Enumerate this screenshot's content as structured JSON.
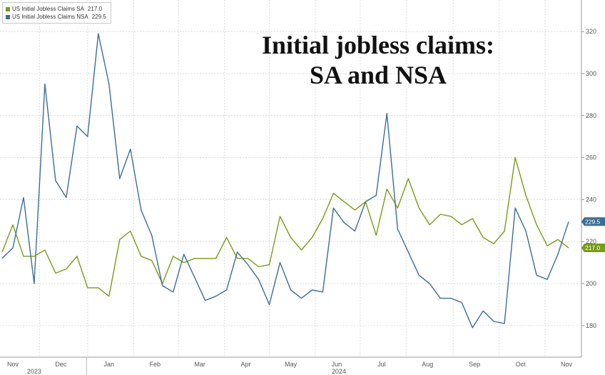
{
  "chart_data": {
    "type": "line",
    "title": "Initial jobless claims: SA and NSA",
    "title_lines": [
      "Initial jobless claims:",
      "SA and NSA"
    ],
    "xlabel": "",
    "ylabel": "",
    "ylim": [
      165,
      335
    ],
    "y_ticks": [
      180,
      200,
      220,
      240,
      260,
      280,
      300,
      320
    ],
    "y_tick_labels": [
      "180",
      "200",
      "220",
      "240",
      "260",
      "280",
      "300",
      "320"
    ],
    "x_month_labels": [
      "Nov",
      "Dec",
      "Jan",
      "Feb",
      "Mar",
      "Apr",
      "May",
      "Jun",
      "Jul",
      "Aug",
      "Sep",
      "Oct",
      "Nov"
    ],
    "x_year_labels": [
      "2023",
      "2024"
    ],
    "x_month_positions": [
      1,
      5.5,
      10,
      14.3,
      18.5,
      22.8,
      27,
      31.3,
      35.5,
      39.8,
      44.2,
      48.5,
      52.8
    ],
    "x_year_positions": [
      3,
      31.5
    ],
    "grid": true,
    "legend_position": "top-left",
    "series": [
      {
        "name": "US Initial Jobless Claims SA",
        "legend_value": "217.0",
        "last_label": "217.0",
        "color": "#7a9a1a",
        "values": [
          215,
          228,
          213,
          213,
          216,
          205,
          207,
          213,
          198,
          198,
          194,
          221,
          225,
          213,
          211,
          200,
          213,
          210,
          212,
          212,
          212,
          222,
          212,
          212,
          208,
          209,
          232,
          222,
          216,
          222,
          231,
          243,
          239,
          235,
          239,
          223,
          245,
          236,
          250,
          236,
          228,
          233,
          232,
          228,
          231,
          222,
          219,
          225,
          260,
          242,
          228,
          218,
          221,
          217
        ]
      },
      {
        "name": "US Initial Jobless Claims NSA",
        "legend_value": "229.5",
        "last_label": "229.5",
        "color": "#3c6e94",
        "values": [
          212,
          217,
          241,
          200,
          295,
          249,
          241,
          275,
          270,
          319,
          295,
          250,
          264,
          235,
          223,
          199,
          196,
          214,
          203,
          192,
          194,
          197,
          215,
          209,
          202,
          190,
          210,
          197,
          193,
          197,
          196,
          236,
          229,
          225,
          239,
          242,
          281,
          226,
          215,
          204,
          200,
          193,
          193,
          191,
          179,
          187,
          182,
          181,
          236,
          225,
          204,
          202,
          214,
          229.5
        ]
      }
    ]
  }
}
